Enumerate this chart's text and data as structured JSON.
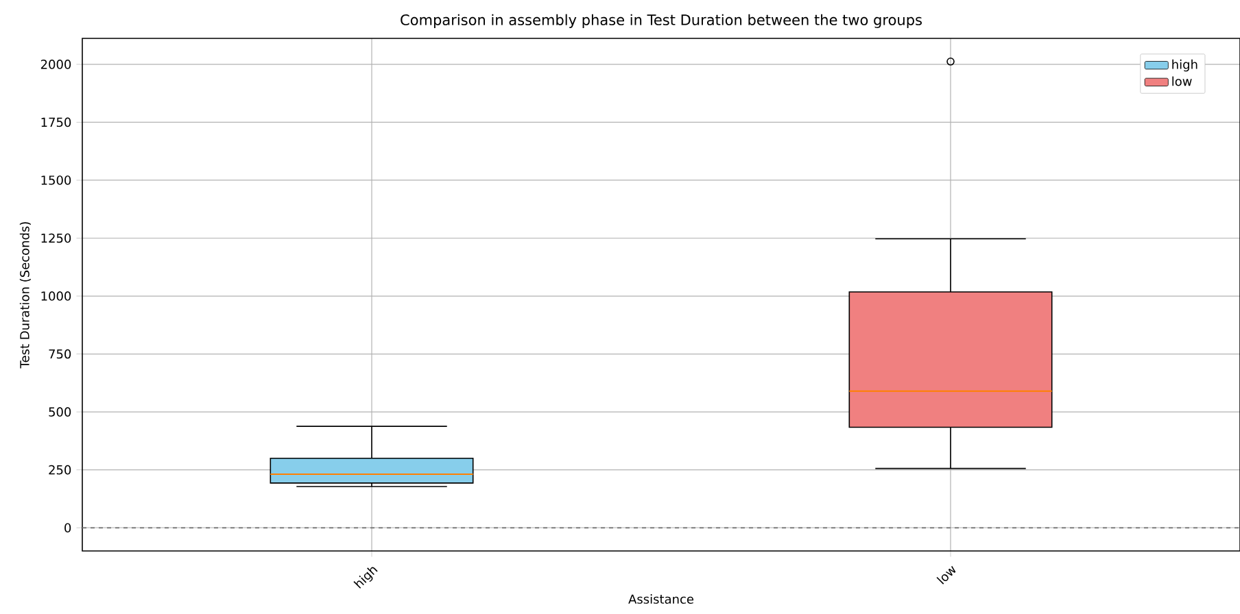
{
  "chart_data": {
    "type": "box",
    "title": "Comparison in assembly phase in Test Duration  between the two groups",
    "xlabel": "Assistance",
    "ylabel": "Test Duration (Seconds)",
    "categories": [
      "high",
      "low"
    ],
    "series": [
      {
        "name": "high",
        "color": "#87ceeb",
        "boxes": [
          {
            "low": 178,
            "q1": 193,
            "median": 231,
            "q3": 300,
            "high": 438
          },
          null
        ]
      },
      {
        "name": "low",
        "color": "#f08080",
        "boxes": [
          null,
          {
            "low": 256,
            "q1": 434,
            "median": 590,
            "q3": 1018,
            "high": 1247,
            "outliers": [
              2012
            ]
          }
        ]
      }
    ],
    "ylim": [
      -100,
      2112
    ],
    "yticks": [
      0,
      250,
      500,
      750,
      1000,
      1250,
      1500,
      1750,
      2000
    ],
    "ref_lines": [
      {
        "axis": "y",
        "value": 0,
        "color": "#808080",
        "line_style": "dashed"
      }
    ],
    "grid": true,
    "legend": "top right"
  }
}
